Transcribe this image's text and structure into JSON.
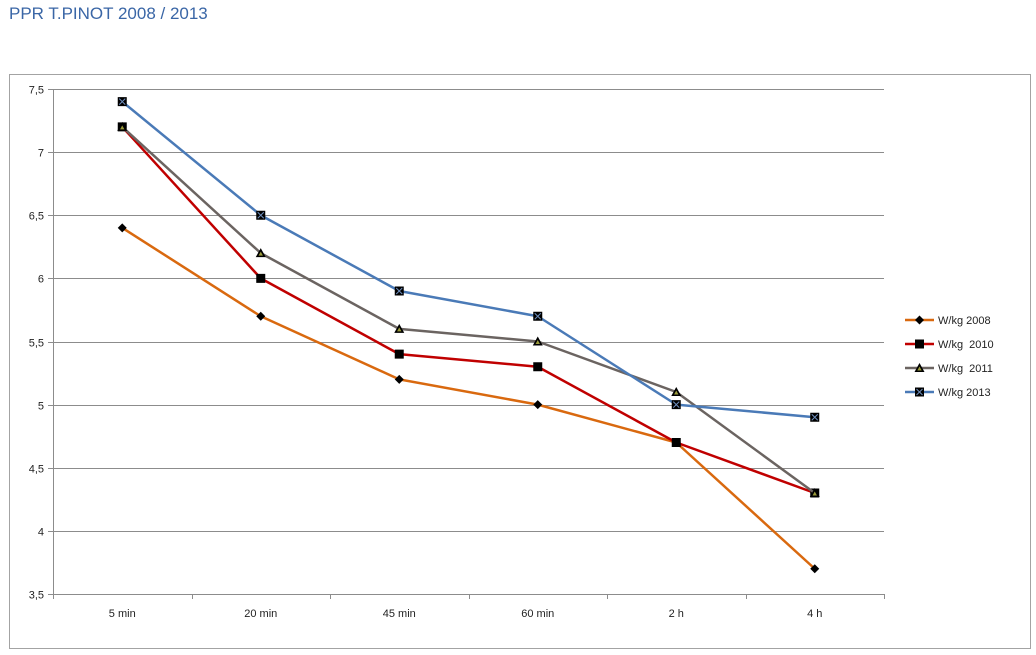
{
  "page": {
    "title": "PPR T.PINOT 2008 / 2013"
  },
  "chart_data": {
    "type": "line",
    "title": "PPR T.PINOT 2008 / 2013",
    "xlabel": "",
    "ylabel": "",
    "categories": [
      "5 min",
      "20 min",
      "45 min",
      "60 min",
      "2 h",
      "4 h"
    ],
    "ylim": [
      3.5,
      7.5
    ],
    "ytick_step": 0.5,
    "ytick_labels": [
      "3,5",
      "4",
      "4,5",
      "5",
      "5,5",
      "6",
      "6,5",
      "7",
      "7,5"
    ],
    "grid": "horizontal",
    "legend_position": "right",
    "series": [
      {
        "name": "W/kg 2008",
        "color": "#d9690f",
        "marker": "diamond",
        "values": [
          6.4,
          5.7,
          5.2,
          5.0,
          4.7,
          3.7
        ]
      },
      {
        "name": "W/kg  2010",
        "color": "#c00000",
        "marker": "square",
        "values": [
          7.2,
          6.0,
          5.4,
          5.3,
          4.7,
          4.3
        ]
      },
      {
        "name": "W/kg  2011",
        "color": "#6b6461",
        "marker": "triangle",
        "values": [
          7.2,
          6.2,
          5.6,
          5.5,
          5.1,
          4.3
        ]
      },
      {
        "name": "W/kg 2013",
        "color": "#4a7ab7",
        "marker": "xsquare",
        "values": [
          7.4,
          6.5,
          5.9,
          5.7,
          5.0,
          4.9
        ]
      }
    ]
  }
}
